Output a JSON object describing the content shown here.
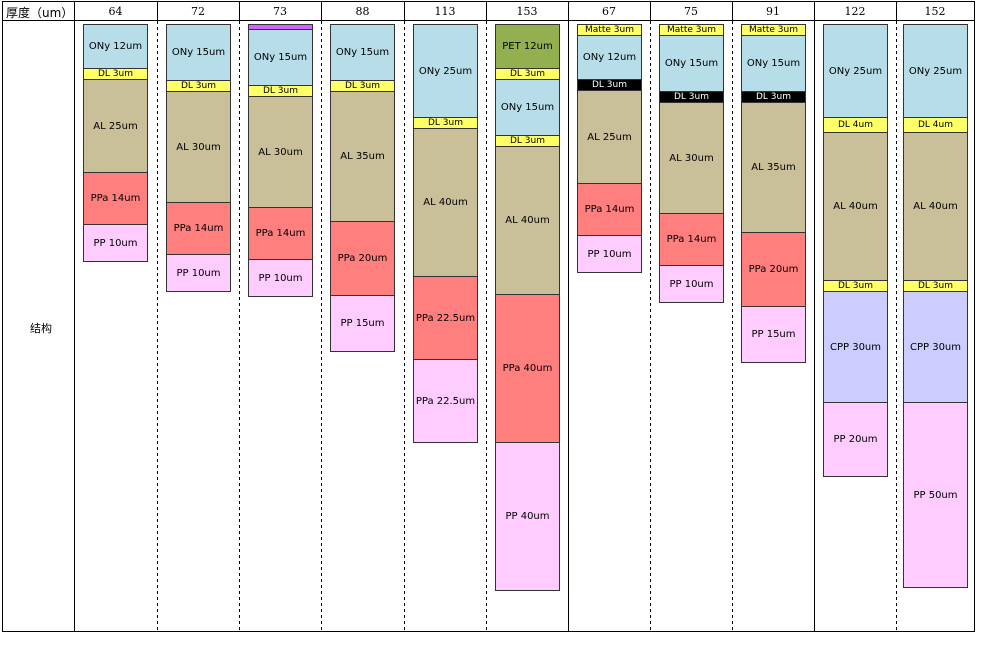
{
  "header_label": "厚度（um）",
  "row_label": "结构",
  "colors": {
    "ONy": "#b7dde8",
    "DL": "#ffff66",
    "DL_black": "#000000",
    "AL": "#c9c09a",
    "PPa": "#ff7f7f",
    "PP": "#ffccff",
    "PET": "#92b050",
    "Matte": "#ffff66",
    "CPP": "#ccccff",
    "top_strip": "#cc66ff"
  },
  "structures": [
    {
      "thickness": "64",
      "layers": [
        {
          "type": "ONy",
          "label": "ONy 12um",
          "t": 12
        },
        {
          "type": "DL",
          "label": "DL 3um",
          "t": 3
        },
        {
          "type": "AL",
          "label": "AL 25um",
          "t": 25
        },
        {
          "type": "PPa",
          "label": "PPa 14um",
          "t": 14
        },
        {
          "type": "PP",
          "label": "PP 10um",
          "t": 10
        }
      ]
    },
    {
      "thickness": "72",
      "layers": [
        {
          "type": "ONy",
          "label": "ONy 15um",
          "t": 15
        },
        {
          "type": "DL",
          "label": "DL 3um",
          "t": 3
        },
        {
          "type": "AL",
          "label": "AL 30um",
          "t": 30
        },
        {
          "type": "PPa",
          "label": "PPa 14um",
          "t": 14
        },
        {
          "type": "PP",
          "label": "PP 10um",
          "t": 10
        }
      ]
    },
    {
      "thickness": "73",
      "layers": [
        {
          "type": "top_strip",
          "label": "",
          "t": 1
        },
        {
          "type": "ONy",
          "label": "ONy 15um",
          "t": 15
        },
        {
          "type": "DL",
          "label": "DL 3um",
          "t": 3
        },
        {
          "type": "AL",
          "label": "AL 30um",
          "t": 30
        },
        {
          "type": "PPa",
          "label": "PPa 14um",
          "t": 14
        },
        {
          "type": "PP",
          "label": "PP 10um",
          "t": 10
        }
      ]
    },
    {
      "thickness": "88",
      "layers": [
        {
          "type": "ONy",
          "label": "ONy 15um",
          "t": 15
        },
        {
          "type": "DL",
          "label": "DL 3um",
          "t": 3
        },
        {
          "type": "AL",
          "label": "AL 35um",
          "t": 35
        },
        {
          "type": "PPa",
          "label": "PPa 20um",
          "t": 20
        },
        {
          "type": "PP",
          "label": "PP 15um",
          "t": 15
        }
      ]
    },
    {
      "thickness": "113",
      "layers": [
        {
          "type": "ONy",
          "label": "ONy 25um",
          "t": 25
        },
        {
          "type": "DL",
          "label": "DL 3um",
          "t": 3
        },
        {
          "type": "AL",
          "label": "AL 40um",
          "t": 40
        },
        {
          "type": "PPa",
          "label": "PPa 22.5um",
          "t": 22.5
        },
        {
          "type": "PP",
          "label": "PPa 22.5um",
          "t": 22.5
        }
      ]
    },
    {
      "thickness": "153",
      "layers": [
        {
          "type": "PET",
          "label": "PET 12um",
          "t": 12
        },
        {
          "type": "DL",
          "label": "DL 3um",
          "t": 3
        },
        {
          "type": "ONy",
          "label": "ONy 15um",
          "t": 15
        },
        {
          "type": "DL",
          "label": "DL 3um",
          "t": 3
        },
        {
          "type": "AL",
          "label": "AL 40um",
          "t": 40
        },
        {
          "type": "PPa",
          "label": "PPa 40um",
          "t": 40
        },
        {
          "type": "PP",
          "label": "PP 40um",
          "t": 40
        }
      ]
    },
    {
      "thickness": "67",
      "layers": [
        {
          "type": "Matte",
          "label": "Matte 3um",
          "t": 3
        },
        {
          "type": "ONy",
          "label": "ONy 12um",
          "t": 12
        },
        {
          "type": "DL_black",
          "label": "DL 3um",
          "t": 3
        },
        {
          "type": "AL",
          "label": "AL 25um",
          "t": 25
        },
        {
          "type": "PPa",
          "label": "PPa 14um",
          "t": 14
        },
        {
          "type": "PP",
          "label": "PP 10um",
          "t": 10
        }
      ]
    },
    {
      "thickness": "75",
      "layers": [
        {
          "type": "Matte",
          "label": "Matte 3um",
          "t": 3
        },
        {
          "type": "ONy",
          "label": "ONy 15um",
          "t": 15
        },
        {
          "type": "DL_black",
          "label": "DL 3um",
          "t": 3
        },
        {
          "type": "AL",
          "label": "AL 30um",
          "t": 30
        },
        {
          "type": "PPa",
          "label": "PPa 14um",
          "t": 14
        },
        {
          "type": "PP",
          "label": "PP 10um",
          "t": 10
        }
      ]
    },
    {
      "thickness": "91",
      "layers": [
        {
          "type": "Matte",
          "label": "Matte 3um",
          "t": 3
        },
        {
          "type": "ONy",
          "label": "ONy 15um",
          "t": 15
        },
        {
          "type": "DL_black",
          "label": "DL 3um",
          "t": 3
        },
        {
          "type": "AL",
          "label": "AL 35um",
          "t": 35
        },
        {
          "type": "PPa",
          "label": "PPa 20um",
          "t": 20
        },
        {
          "type": "PP",
          "label": "PP 15um",
          "t": 15
        }
      ]
    },
    {
      "thickness": "122",
      "layers": [
        {
          "type": "ONy",
          "label": "ONy 25um",
          "t": 25
        },
        {
          "type": "DL",
          "label": "DL 4um",
          "t": 4
        },
        {
          "type": "AL",
          "label": "AL 40um",
          "t": 40
        },
        {
          "type": "DL",
          "label": "DL 3um",
          "t": 3
        },
        {
          "type": "CPP",
          "label": "CPP 30um",
          "t": 30
        },
        {
          "type": "PP",
          "label": "PP 20um",
          "t": 20
        }
      ]
    },
    {
      "thickness": "152",
      "layers": [
        {
          "type": "ONy",
          "label": "ONy 25um",
          "t": 25
        },
        {
          "type": "DL",
          "label": "DL 4um",
          "t": 4
        },
        {
          "type": "AL",
          "label": "AL 40um",
          "t": 40
        },
        {
          "type": "DL",
          "label": "DL 3um",
          "t": 3
        },
        {
          "type": "CPP",
          "label": "CPP 30um",
          "t": 30
        },
        {
          "type": "PP",
          "label": "PP 50um",
          "t": 50
        }
      ]
    }
  ]
}
